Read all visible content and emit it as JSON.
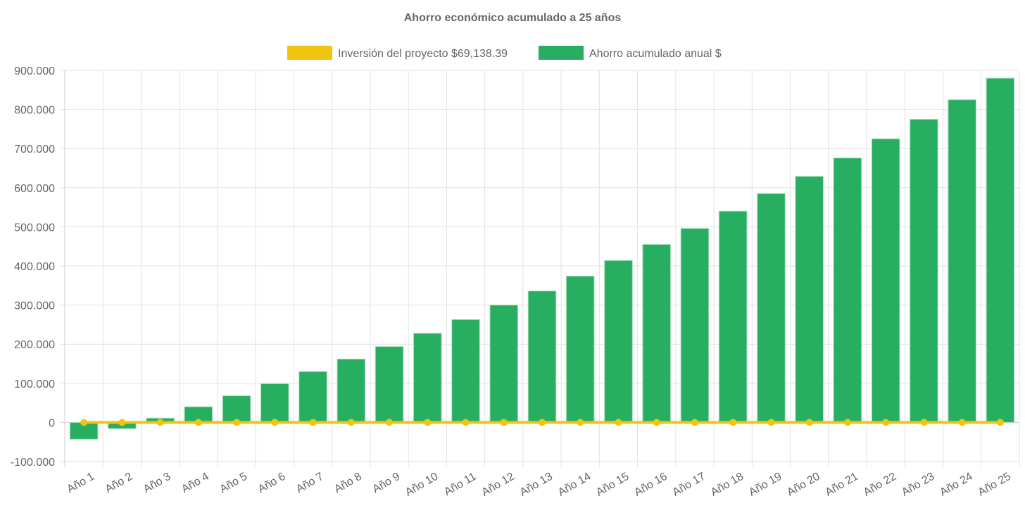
{
  "chart_data": {
    "type": "bar",
    "title": "Ahorro económico acumulado a 25 años",
    "categories": [
      "Año 1",
      "Año 2",
      "Año 3",
      "Año 4",
      "Año 5",
      "Año 6",
      "Año 7",
      "Año 8",
      "Año 9",
      "Año 10",
      "Año 11",
      "Año 12",
      "Año 13",
      "Año 14",
      "Año 15",
      "Año 16",
      "Año 17",
      "Año 18",
      "Año 19",
      "Año 20",
      "Año 21",
      "Año 22",
      "Año 23",
      "Año 24",
      "Año 25"
    ],
    "series": [
      {
        "name": "Inversión del proyecto $69,138.39",
        "type": "line",
        "color": "#f1c40f",
        "values": [
          0,
          0,
          0,
          0,
          0,
          0,
          0,
          0,
          0,
          0,
          0,
          0,
          0,
          0,
          0,
          0,
          0,
          0,
          0,
          0,
          0,
          0,
          0,
          0,
          0
        ]
      },
      {
        "name": "Ahorro acumulado anual $",
        "type": "bar",
        "color": "#27ae60",
        "values": [
          -43000,
          -16000,
          11000,
          40000,
          68000,
          99000,
          130000,
          162000,
          194000,
          228000,
          263000,
          300000,
          336000,
          374000,
          414000,
          455000,
          496000,
          540000,
          585000,
          629000,
          676000,
          725000,
          775000,
          825000,
          880000
        ]
      }
    ],
    "ylim": [
      -100000,
      900000
    ],
    "yticks": [
      "900.000",
      "800.000",
      "700.000",
      "600.000",
      "500.000",
      "400.000",
      "300.000",
      "200.000",
      "100.000",
      "0",
      "-100.000"
    ],
    "ytick_values": [
      900000,
      800000,
      700000,
      600000,
      500000,
      400000,
      300000,
      200000,
      100000,
      0,
      -100000
    ],
    "grid": true,
    "legend_position": "top",
    "xlabel": "",
    "ylabel": ""
  }
}
